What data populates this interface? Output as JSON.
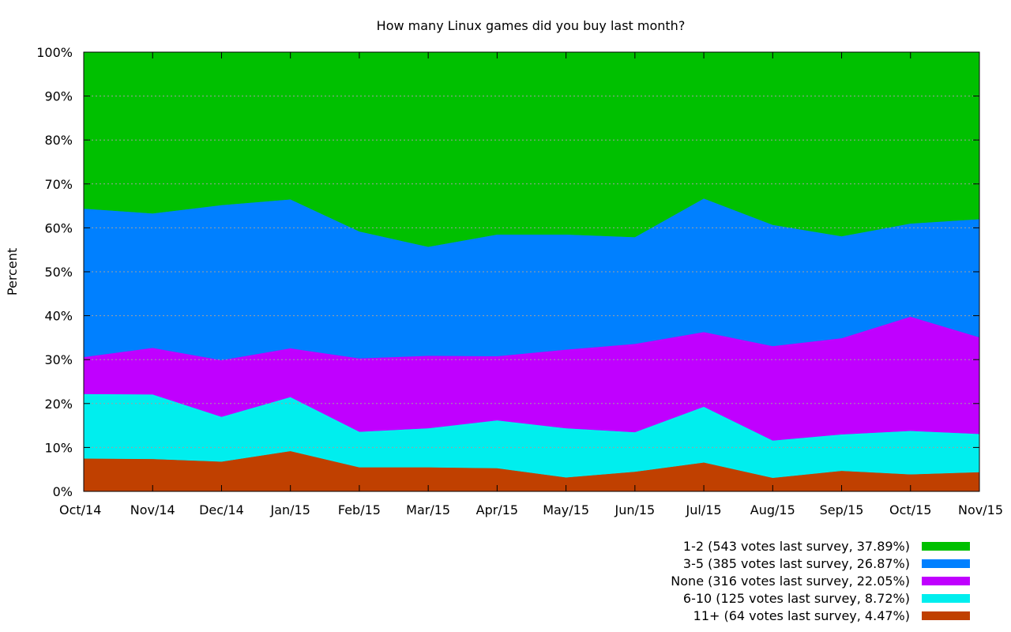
{
  "chart_data": {
    "type": "area",
    "stacked": true,
    "title": "How many Linux games did you buy last month?",
    "ylabel": "Percent",
    "xlabel": "",
    "ylim": [
      0,
      100
    ],
    "yticks": [
      "0%",
      "10%",
      "20%",
      "30%",
      "40%",
      "50%",
      "60%",
      "70%",
      "80%",
      "90%",
      "100%"
    ],
    "categories": [
      "Oct/14",
      "Nov/14",
      "Dec/14",
      "Jan/15",
      "Feb/15",
      "Mar/15",
      "Apr/15",
      "May/15",
      "Jun/15",
      "Jul/15",
      "Aug/15",
      "Sep/15",
      "Oct/15",
      "Nov/15"
    ],
    "grid": true,
    "legend_position": "bottom-right",
    "series": [
      {
        "name": "11+ (64 votes last survey, 4.47%)",
        "color": "#c04000",
        "values": [
          7.5,
          7.4,
          6.8,
          9.2,
          5.5,
          5.5,
          5.3,
          3.2,
          4.5,
          6.6,
          3.1,
          4.7,
          3.9,
          4.4
        ]
      },
      {
        "name": "6-10 (125 votes last survey, 8.72%)",
        "color": "#00eeee",
        "values": [
          14.7,
          14.7,
          10.2,
          12.3,
          8.1,
          8.9,
          10.9,
          11.2,
          9.0,
          12.7,
          8.5,
          8.3,
          9.9,
          8.7
        ]
      },
      {
        "name": "None (316 votes last survey, 22.05%)",
        "color": "#c000ff",
        "values": [
          8.4,
          10.6,
          12.9,
          11.1,
          16.7,
          16.5,
          14.6,
          17.9,
          20.1,
          17.0,
          21.5,
          21.9,
          26.0,
          22.0
        ]
      },
      {
        "name": "3-5 (385 votes last survey, 26.87%)",
        "color": "#0080ff",
        "values": [
          33.8,
          30.6,
          35.3,
          33.9,
          28.9,
          24.8,
          27.7,
          26.2,
          24.3,
          30.4,
          27.6,
          23.2,
          21.2,
          26.9
        ]
      },
      {
        "name": "1-2 (543 votes last survey, 37.89%)",
        "color": "#00c000",
        "values": [
          35.6,
          36.7,
          34.8,
          33.5,
          40.8,
          44.3,
          41.5,
          41.5,
          42.1,
          33.3,
          39.3,
          41.9,
          39.0,
          38.0
        ]
      }
    ],
    "legend_order": [
      4,
      3,
      2,
      1,
      0
    ]
  }
}
